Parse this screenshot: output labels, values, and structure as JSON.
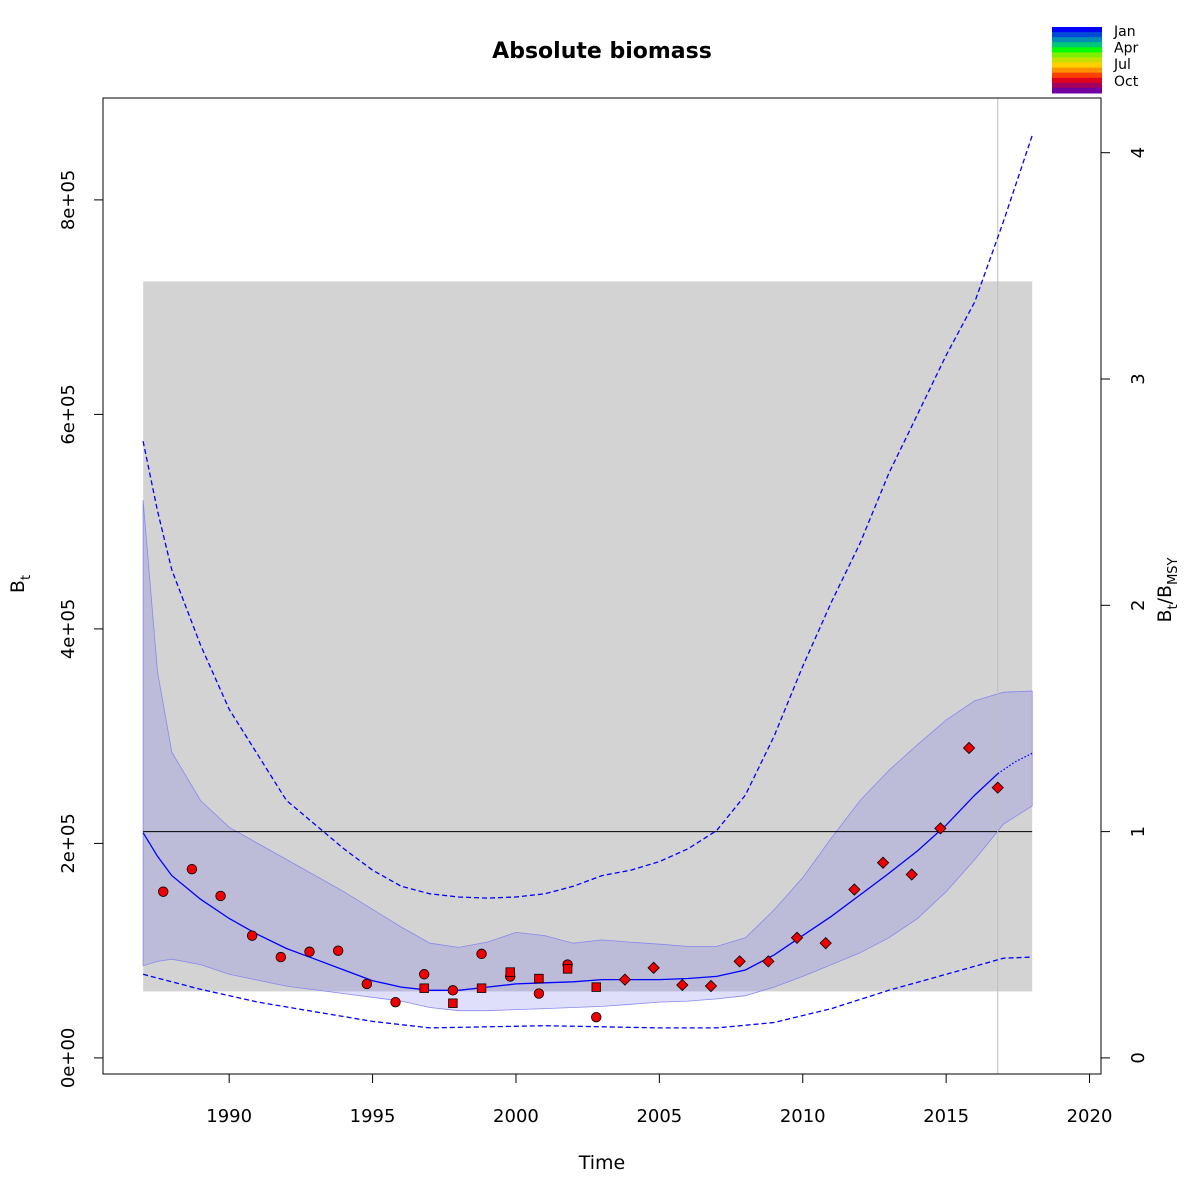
{
  "chart_data": {
    "type": "scatter",
    "title": "Absolute biomass",
    "xlabel": "Time",
    "ylabel_main": "B",
    "ylabel_sub": "t",
    "ylabel2": {
      "b": "B",
      "t": "t",
      "slash": "/",
      "b2": "B",
      "msy": "MSY"
    },
    "xlim": [
      1985.6,
      2020.4
    ],
    "ylim": [
      -15000,
      895000
    ],
    "xticks": [
      1990,
      1995,
      2000,
      2005,
      2010,
      2015,
      2020
    ],
    "xtick_labels": [
      "1990",
      "1995",
      "2000",
      "2005",
      "2010",
      "2015",
      "2020"
    ],
    "yticks": [
      0,
      200000,
      400000,
      600000,
      800000
    ],
    "ytick_labels": [
      "0e+00",
      "2e+05",
      "4e+05",
      "6e+05",
      "8e+05"
    ],
    "bmsy": 211000,
    "y2ticks": [
      0,
      1,
      2,
      3,
      4
    ],
    "y2tick_labels": [
      "0",
      "1",
      "2",
      "3",
      "4"
    ],
    "grey_region": {
      "x": [
        1987,
        2018
      ],
      "y": [
        62000,
        724000
      ]
    },
    "vertical_line_x": 2016.8,
    "ci_band": {
      "x": [
        1987,
        1987.5,
        1988,
        1989,
        1990,
        1992,
        1994,
        1996,
        1997,
        1998,
        1999,
        2000,
        2001,
        2002,
        2003,
        2004,
        2005,
        2006,
        2007,
        2008,
        2009,
        2010,
        2011,
        2012,
        2013,
        2014,
        2015,
        2016,
        2017,
        2018
      ],
      "upper": [
        520000,
        360000,
        285000,
        240000,
        215000,
        185000,
        155000,
        122000,
        107000,
        103000,
        108000,
        117000,
        114000,
        107000,
        110000,
        108000,
        106000,
        104000,
        104000,
        112000,
        138000,
        168000,
        205000,
        240000,
        268000,
        292000,
        315000,
        333000,
        341000,
        342000
      ],
      "lower": [
        86000,
        90000,
        92000,
        87000,
        78000,
        67000,
        60000,
        53000,
        47000,
        44000,
        44000,
        45000,
        46000,
        47000,
        48000,
        50000,
        52000,
        53000,
        55000,
        58000,
        66000,
        76000,
        87000,
        98000,
        112000,
        130000,
        155000,
        185000,
        218000,
        235000
      ]
    },
    "estimate": {
      "x": [
        1987,
        1987.5,
        1988,
        1989,
        1990,
        1991,
        1992,
        1993,
        1994,
        1995,
        1996,
        1997,
        1998,
        1999,
        2000,
        2001,
        2002,
        2003,
        2004,
        2005,
        2006,
        2007,
        2008,
        2009,
        2010,
        2011,
        2012,
        2013,
        2014,
        2015,
        2016,
        2016.8
      ],
      "y": [
        210000,
        188000,
        170000,
        148000,
        130000,
        115000,
        102000,
        92000,
        82000,
        72000,
        66000,
        63000,
        63000,
        66000,
        69000,
        70000,
        71000,
        73000,
        73000,
        73000,
        74000,
        76000,
        82000,
        96000,
        114000,
        132000,
        152000,
        172000,
        193000,
        217000,
        245000,
        265000
      ]
    },
    "forecast": {
      "x": [
        2016.8,
        2017.4,
        2018
      ],
      "y": [
        265000,
        276000,
        284000
      ]
    },
    "pred_upper": {
      "x": [
        1987,
        1987.5,
        1988,
        1989,
        1990,
        1992,
        1994,
        1995,
        1996,
        1997,
        1998,
        1999,
        2000,
        2001,
        2002,
        2003,
        2004,
        2005,
        2006,
        2007,
        2008,
        2009,
        2010,
        2011,
        2012,
        2013,
        2014,
        2015,
        2016,
        2017,
        2018
      ],
      "y": [
        575000,
        510000,
        455000,
        385000,
        325000,
        240000,
        195000,
        175000,
        160000,
        153000,
        150000,
        149000,
        150000,
        153000,
        160000,
        170000,
        175000,
        183000,
        195000,
        212000,
        245000,
        300000,
        365000,
        425000,
        480000,
        545000,
        600000,
        655000,
        705000,
        780000,
        860000
      ]
    },
    "pred_lower": {
      "x": [
        1987,
        1989,
        1991,
        1993,
        1995,
        1997,
        1999,
        2001,
        2003,
        2005,
        2007,
        2009,
        2011,
        2013,
        2015,
        2017,
        2018
      ],
      "y": [
        78000,
        64000,
        52000,
        43000,
        34000,
        28000,
        29000,
        30000,
        29000,
        28000,
        28000,
        33000,
        46000,
        63000,
        78000,
        93000,
        94000
      ]
    },
    "observations": {
      "circle": {
        "x": [
          1987.7,
          1988.7,
          1989.7,
          1990.8,
          1991.8,
          1992.8,
          1993.8,
          1994.8,
          1995.8,
          1996.8,
          1997.8,
          1998.8,
          1999.8,
          2000.8,
          2001.8,
          2002.8
        ],
        "y": [
          155000,
          176000,
          151000,
          114000,
          94000,
          99000,
          100000,
          69000,
          52000,
          78000,
          63000,
          97000,
          76000,
          60000,
          87000,
          38000
        ]
      },
      "square": {
        "x": [
          1996.8,
          1997.8,
          1998.8,
          1999.8,
          2000.8,
          2001.8,
          2002.8
        ],
        "y": [
          65000,
          51000,
          65000,
          80000,
          74000,
          83000,
          66000
        ]
      },
      "diamond": {
        "x": [
          2003.8,
          2004.8,
          2005.8,
          2006.8,
          2007.8,
          2008.8,
          2009.8,
          2010.8,
          2011.8,
          2012.8,
          2013.8,
          2014.8,
          2015.8,
          2016.8
        ],
        "y": [
          73000,
          84000,
          68000,
          67000,
          90000,
          90000,
          112000,
          107000,
          157000,
          182000,
          171000,
          214000,
          289000,
          252000
        ]
      }
    },
    "legend": {
      "labels": [
        "Jan",
        "Apr",
        "Jul",
        "Oct"
      ],
      "colors": [
        "#0000FF",
        "#0048D8",
        "#008CB4",
        "#00C878",
        "#00FF00",
        "#7CF000",
        "#C8E000",
        "#FFD000",
        "#FF9000",
        "#FF4000",
        "#E00020",
        "#A00060",
        "#7000A0"
      ]
    },
    "colors": {
      "grey_region": "#D3D3D3",
      "ci_fill": "rgba(110,110,240,0.22)",
      "ci_stroke": "#8888EE",
      "estimate": "#0000FF",
      "points": "#EE0000",
      "bmsy_line": "#000000",
      "vline": "#BEBEBE"
    }
  }
}
